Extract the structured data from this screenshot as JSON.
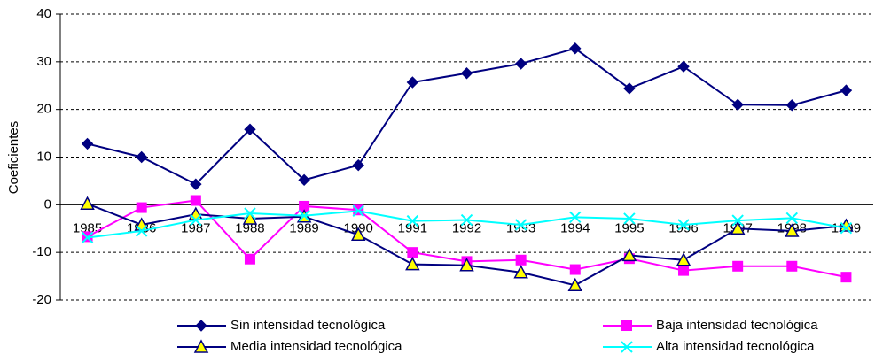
{
  "chart_data": {
    "type": "line",
    "y_label": "Coeficientes",
    "categories": [
      "1985",
      "1986",
      "1987",
      "1988",
      "1989",
      "1990",
      "1991",
      "1992",
      "1993",
      "1994",
      "1995",
      "1996",
      "1997",
      "1998",
      "1999"
    ],
    "series": [
      {
        "name": "Sin intensidad tecnológica",
        "color": "#000080",
        "marker": "diamond",
        "marker_fill": "#000080",
        "values": [
          12.8,
          10,
          4.3,
          15.8,
          5.2,
          8.3,
          25.7,
          27.6,
          29.6,
          32.8,
          24.4,
          29,
          21,
          20.9,
          24
        ]
      },
      {
        "name": "Baja intensidad tecnológica",
        "color": "#ff00ff",
        "marker": "square",
        "marker_fill": "#ff00ff",
        "values": [
          -6.7,
          -0.6,
          0.9,
          -11.4,
          -0.3,
          -1.1,
          -10,
          -11.9,
          -11.6,
          -13.6,
          -11.3,
          -13.8,
          -12.9,
          -12.9,
          -15.2
        ]
      },
      {
        "name": "Media intensidad tecnológica",
        "color": "#000080",
        "marker": "triangle",
        "marker_fill": "#ffff00",
        "values": [
          0.2,
          -4.2,
          -2,
          -2.9,
          -2.5,
          -6.3,
          -12.5,
          -12.7,
          -14.2,
          -16.9,
          -10.6,
          -11.6,
          -5,
          -5.5,
          -4.4
        ]
      },
      {
        "name": "Alta intensidad tecnológica",
        "color": "#00ffff",
        "marker": "x",
        "marker_fill": "#00ffff",
        "values": [
          -6.9,
          -5.5,
          -3.2,
          -1.8,
          -2.3,
          -1.3,
          -3.4,
          -3.2,
          -4.2,
          -2.6,
          -2.9,
          -4.2,
          -3.3,
          -2.8,
          -4.9
        ]
      }
    ],
    "ylim": [
      -20,
      40
    ],
    "yticks": [
      -20,
      -10,
      0,
      10,
      20,
      30,
      40
    ],
    "grid": true,
    "legend": "bottom"
  }
}
